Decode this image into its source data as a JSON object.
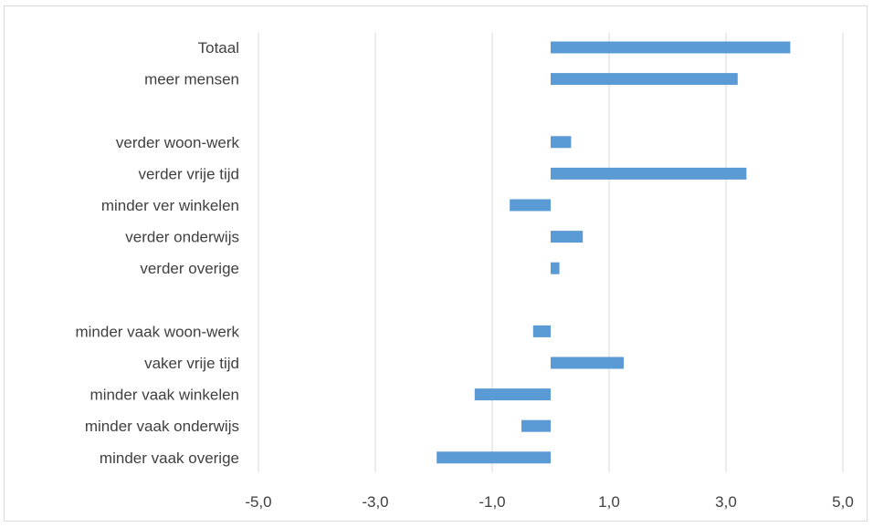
{
  "chart_data": {
    "type": "bar",
    "orientation": "horizontal",
    "title": "",
    "xlabel": "",
    "ylabel": "",
    "xlim": [
      -5,
      5
    ],
    "xticks": [
      -5,
      -3,
      -1,
      1,
      3,
      5
    ],
    "xtick_labels": [
      "-5,0",
      "-3,0",
      "-1,0",
      "1,0",
      "3,0",
      "5,0"
    ],
    "grid": "vertical",
    "legend": "none",
    "bar_color": "#5b9bd5",
    "grid_color": "#d9d9d9",
    "categories": [
      "Totaal",
      "meer mensen",
      "",
      "verder woon-werk",
      "verder vrije tijd",
      "minder ver winkelen",
      "verder onderwijs",
      "verder overige",
      "",
      "minder vaak woon-werk",
      "vaker vrije tijd",
      "minder vaak winkelen",
      "minder vaak onderwijs",
      "minder vaak overige"
    ],
    "values": [
      4.1,
      3.2,
      null,
      0.35,
      3.35,
      -0.7,
      0.55,
      0.15,
      null,
      -0.3,
      1.25,
      -1.3,
      -0.5,
      -1.95
    ]
  }
}
